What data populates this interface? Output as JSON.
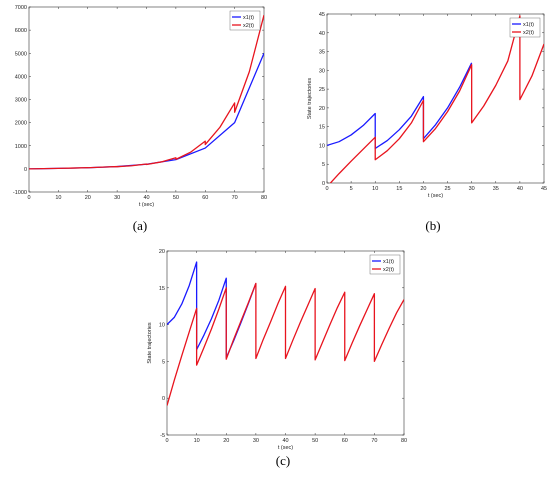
{
  "chart_data": [
    {
      "type": "line",
      "panel_label": "(a)",
      "xlabel": "t (sec)",
      "ylabel": "",
      "xlim": [
        0,
        80
      ],
      "ylim": [
        -1000,
        7000
      ],
      "xticks": [
        0,
        10,
        20,
        30,
        40,
        50,
        60,
        70,
        80
      ],
      "yticks": [
        -1000,
        0,
        1000,
        2000,
        3000,
        4000,
        5000,
        6000,
        7000
      ],
      "grid": false,
      "legend": "top-right",
      "series": [
        {
          "name": "x1(t)",
          "color": "#1a1aff",
          "x": [
            0,
            10,
            20,
            30,
            40,
            50,
            60,
            70,
            80
          ],
          "y": [
            0,
            20,
            50,
            100,
            200,
            400,
            900,
            2000,
            5000
          ]
        },
        {
          "name": "x2(t)",
          "color": "#e8141e",
          "x": [
            0,
            5,
            10,
            10,
            15,
            20,
            20,
            25,
            30,
            30,
            35,
            40,
            40,
            45,
            50,
            50,
            55,
            60,
            60,
            65,
            70,
            70,
            75,
            80
          ],
          "y": [
            0,
            10,
            20,
            20,
            35,
            55,
            50,
            75,
            100,
            95,
            135,
            210,
            190,
            300,
            480,
            410,
            720,
            1200,
            1050,
            1800,
            2850,
            2450,
            4200,
            6650
          ]
        }
      ]
    },
    {
      "type": "line",
      "panel_label": "(b)",
      "xlabel": "t (sec)",
      "ylabel": "State trajectories",
      "xlim": [
        0,
        45
      ],
      "ylim": [
        0,
        45
      ],
      "xticks": [
        0,
        5,
        10,
        15,
        20,
        25,
        30,
        35,
        40,
        45
      ],
      "yticks": [
        0,
        5,
        10,
        15,
        20,
        25,
        30,
        35,
        40,
        45
      ],
      "grid": false,
      "legend": "top-right",
      "series": [
        {
          "name": "x1(t)",
          "color": "#1a1aff",
          "x": [
            0,
            2.5,
            5,
            7.5,
            10,
            10,
            12.5,
            15,
            17.5,
            20,
            20,
            22.5,
            25,
            27.5,
            30
          ],
          "y": [
            10,
            11,
            12.8,
            15.3,
            18.5,
            9.2,
            11.3,
            14.2,
            17.8,
            23,
            11.8,
            15.5,
            20,
            25.5,
            32
          ]
        },
        {
          "name": "x2(t)",
          "color": "#e8141e",
          "x": [
            0,
            2.5,
            5,
            7.5,
            10,
            10,
            12.5,
            15,
            17.5,
            20,
            20,
            22.5,
            25,
            27.5,
            30,
            30,
            32.5,
            35,
            37.5,
            40,
            40,
            42.5,
            45
          ],
          "y": [
            -1,
            2.5,
            5.8,
            9,
            12.2,
            6.2,
            8.6,
            11.8,
            16,
            22,
            11,
            14.5,
            19,
            24.5,
            31.5,
            16,
            20.5,
            26,
            32.5,
            44.5,
            22.2,
            28.5,
            37
          ]
        }
      ]
    },
    {
      "type": "line",
      "panel_label": "(c)",
      "xlabel": "t (sec)",
      "ylabel": "State trajectories",
      "xlim": [
        0,
        80
      ],
      "ylim": [
        -5,
        20
      ],
      "xticks": [
        0,
        10,
        20,
        30,
        40,
        50,
        60,
        70,
        80
      ],
      "yticks": [
        -5,
        0,
        5,
        10,
        15,
        20
      ],
      "grid": false,
      "legend": "top-right",
      "series": [
        {
          "name": "x1(t)",
          "color": "#1a1aff",
          "x": [
            0,
            2.5,
            5,
            7.5,
            10,
            10,
            12.5,
            15,
            17.5,
            20,
            20,
            22.5,
            25,
            27.5,
            30
          ],
          "y": [
            10,
            11,
            12.8,
            15.3,
            18.5,
            6.6,
            8.6,
            10.8,
            13.3,
            16.3,
            5.5,
            7.8,
            10.3,
            12.9,
            15.6
          ]
        },
        {
          "name": "x2(t)",
          "color": "#e8141e",
          "x": [
            0,
            2.5,
            5,
            7.5,
            10,
            10,
            12.5,
            15,
            17.5,
            20,
            20,
            22.5,
            25,
            27.5,
            30,
            30,
            32.5,
            35,
            37.5,
            40,
            40,
            42.5,
            45,
            47.5,
            50,
            50,
            52.5,
            55,
            57.5,
            60,
            60,
            62.5,
            65,
            67.5,
            70,
            70,
            72.5,
            75,
            77.5,
            80
          ],
          "y": [
            -1,
            2.5,
            5.8,
            9,
            12.2,
            4.5,
            6.9,
            9.4,
            12.1,
            15,
            5.3,
            8,
            10.5,
            13,
            15.6,
            5.4,
            8,
            10.4,
            12.9,
            15.2,
            5.4,
            7.9,
            10.3,
            12.6,
            14.9,
            5.2,
            7.6,
            10,
            12.3,
            14.4,
            5.1,
            7.5,
            9.8,
            12,
            14.2,
            5,
            7.3,
            9.5,
            11.6,
            13.4
          ]
        }
      ]
    }
  ]
}
